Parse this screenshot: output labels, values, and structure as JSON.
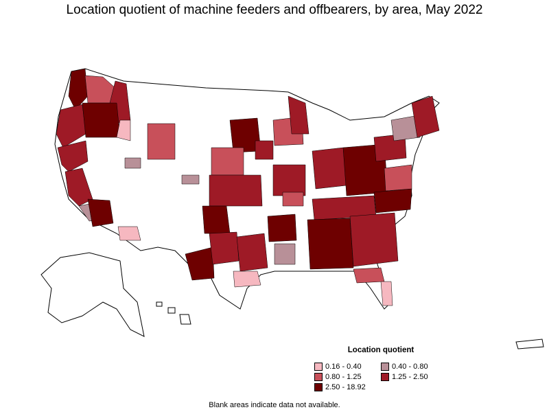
{
  "title": "Location quotient of machine feeders and offbearers, by area, May 2022",
  "legend": {
    "title": "Location quotient",
    "items": [
      {
        "label": "0.16 - 0.40",
        "color": "#f6b8c0"
      },
      {
        "label": "0.40 - 0.80",
        "color": "#b89098"
      },
      {
        "label": "0.80 - 1.25",
        "color": "#c8505a"
      },
      {
        "label": "1.25 - 2.50",
        "color": "#9e1a26"
      },
      {
        "label": "2.50 - 18.92",
        "color": "#6e0000"
      }
    ]
  },
  "note": "Blank areas indicate data not available.",
  "colors": {
    "no_data": "#ffffff",
    "border": "#000000"
  }
}
